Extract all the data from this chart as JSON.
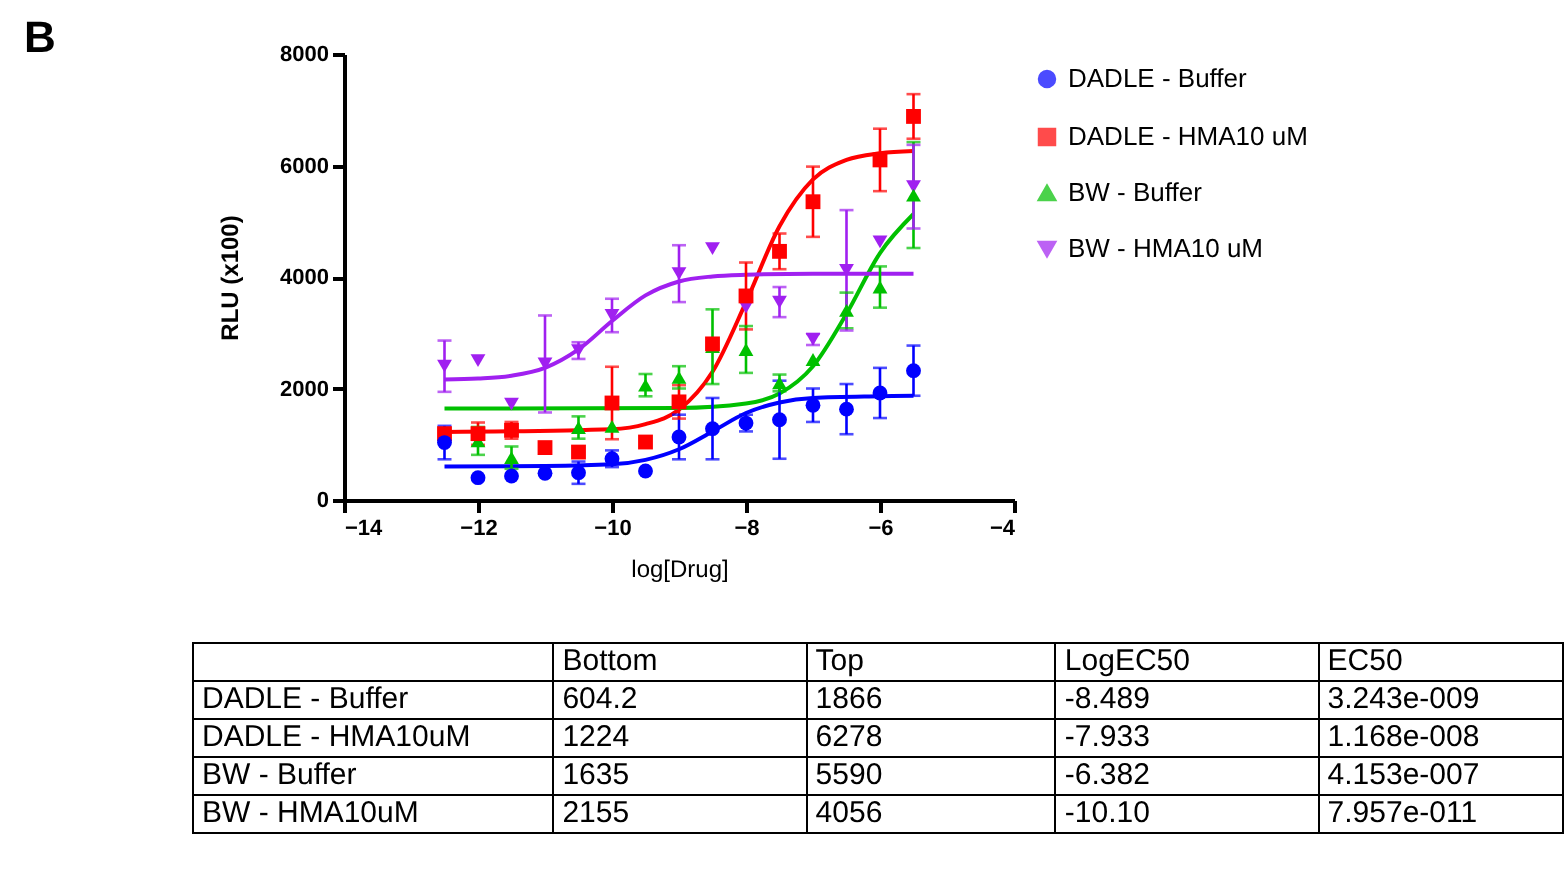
{
  "chart_data": [
    {
      "type": "scatter",
      "xlabel": "log[Drug]",
      "ylabel": "RLU (x100)",
      "annotations": [
        "B"
      ],
      "x": [
        -12.5,
        -12,
        -11.5,
        -11,
        -10.5,
        -10,
        -9.5,
        -9,
        -8.5,
        -8,
        -7.5,
        -7,
        -6.5,
        -6,
        -5.5
      ],
      "xlim": [
        -14,
        -4
      ],
      "xticks": [
        -14,
        -12,
        -10,
        -8,
        -6,
        -4
      ],
      "ylim": [
        0,
        8000
      ],
      "yticks": [
        0,
        2000,
        4000,
        6000,
        8000
      ],
      "grid": false,
      "legend": "top right",
      "series": [
        {
          "name": "DADLE - Buffer",
          "color": "#0000ff",
          "marker": "circle",
          "values": [
            1030,
            400,
            430,
            480,
            490,
            740,
            520,
            1130,
            1280,
            1380,
            1440,
            1700,
            1630,
            1920,
            2320
          ],
          "errors": [
            300,
            null,
            null,
            null,
            200,
            150,
            null,
            400,
            550,
            150,
            700,
            300,
            450,
            450,
            450
          ]
        },
        {
          "name": "DADLE - HMA10 uM",
          "color": "#ff0000",
          "marker": "square",
          "values": [
            1190,
            1190,
            1250,
            940,
            860,
            1740,
            1040,
            1760,
            2800,
            3660,
            4460,
            5350,
            null,
            6100,
            6880
          ],
          "errors": [
            null,
            200,
            150,
            null,
            null,
            650,
            null,
            300,
            null,
            600,
            320,
            630,
            null,
            560,
            400
          ]
        },
        {
          "name": "BW - Buffer",
          "color": "#00c000",
          "marker": "triangle",
          "values": [
            null,
            1060,
            760,
            null,
            1300,
            1320,
            2060,
            2200,
            2750,
            2700,
            2100,
            2520,
            3400,
            3820,
            5470
          ],
          "errors": [
            null,
            250,
            200,
            null,
            200,
            null,
            200,
            200,
            670,
            420,
            150,
            null,
            320,
            370,
            950
          ]
        },
        {
          "name": "BW - HMA10 uM",
          "color": "#a020f0",
          "marker": "triangle-down",
          "values": [
            2400,
            2500,
            1720,
            2440,
            2680,
            3310,
            null,
            4060,
            4510,
            3460,
            3550,
            2880,
            4120,
            4630,
            5620
          ],
          "errors": [
            460,
            null,
            null,
            870,
            150,
            300,
            null,
            510,
            null,
            null,
            270,
            100,
            1080,
            null,
            750
          ]
        },
        {
          "type": "line",
          "color": "#0000ff",
          "x": [
            -12.5,
            -11,
            -10,
            -9.5,
            -9,
            -8.5,
            -8,
            -7.5,
            -7,
            -6,
            -5.5
          ],
          "values": [
            600,
            610,
            640,
            720,
            910,
            1230,
            1560,
            1750,
            1830,
            1860,
            1870
          ]
        },
        {
          "type": "line",
          "color": "#ff0000",
          "x": [
            -12.5,
            -10,
            -9.5,
            -9,
            -8.5,
            -8,
            -7.5,
            -7,
            -6.5,
            -6,
            -5.5
          ],
          "values": [
            1220,
            1270,
            1360,
            1620,
            2300,
            3550,
            4910,
            5750,
            6100,
            6220,
            6260
          ]
        },
        {
          "type": "line",
          "color": "#00c000",
          "x": [
            -12.5,
            -9,
            -8,
            -7.5,
            -7,
            -6.5,
            -6,
            -5.5
          ],
          "values": [
            1640,
            1650,
            1730,
            1910,
            2400,
            3340,
            4430,
            5130
          ]
        },
        {
          "type": "line",
          "color": "#a020f0",
          "x": [
            -12.5,
            -12,
            -11.5,
            -11,
            -10.5,
            -10,
            -9.5,
            -9,
            -8.5,
            -8,
            -7,
            -5.5
          ],
          "values": [
            2160,
            2180,
            2230,
            2370,
            2700,
            3210,
            3670,
            3920,
            4010,
            4040,
            4060,
            4060
          ]
        }
      ]
    },
    {
      "type": "other",
      "categories": [
        "Bottom",
        "Top",
        "LogEC50",
        "EC50"
      ],
      "y_categories": [
        "DADLE - Buffer",
        "DADLE - HMA10uM",
        "BW - Buffer",
        "BW - HMA10uM"
      ],
      "cell_labels": [
        [
          "604.2",
          "1866",
          "-8.489",
          "3.243e-009"
        ],
        [
          "1224",
          "6278",
          "-7.933",
          "1.168e-008"
        ],
        [
          "1635",
          "5590",
          "-6.382",
          "4.153e-007"
        ],
        [
          "2155",
          "4056",
          "-10.10",
          "7.957e-011"
        ]
      ]
    }
  ]
}
